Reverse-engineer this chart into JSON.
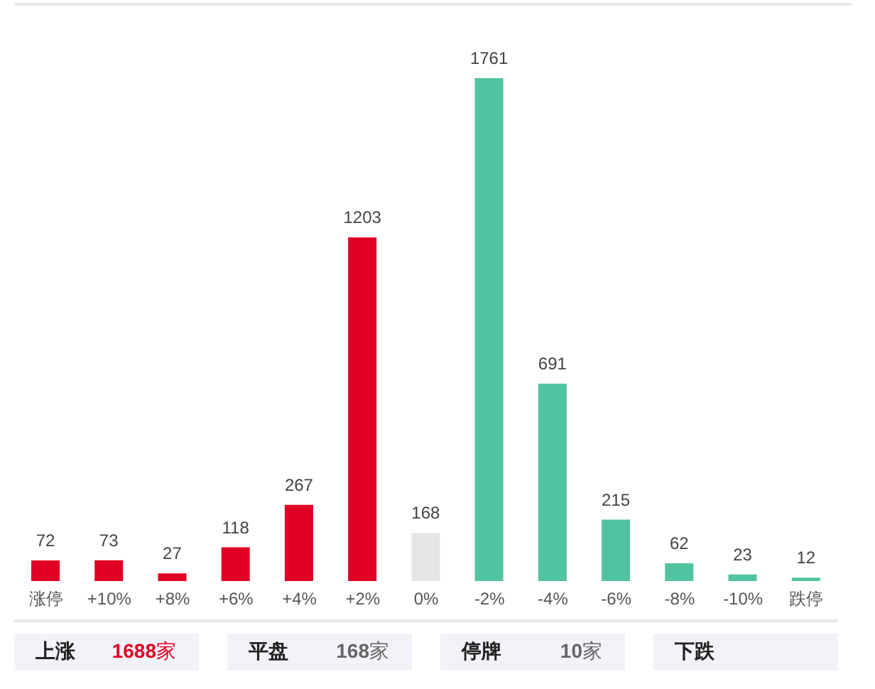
{
  "chart_data": {
    "type": "bar",
    "categories": [
      "涨停",
      "+10%",
      "+8%",
      "+6%",
      "+4%",
      "+2%",
      "0%",
      "-2%",
      "-4%",
      "-6%",
      "-8%",
      "-10%",
      "跌停"
    ],
    "values": [
      72,
      73,
      27,
      118,
      267,
      1203,
      168,
      1761,
      691,
      215,
      62,
      23,
      12
    ],
    "colors": [
      "#e10024",
      "#e10024",
      "#e10024",
      "#e10024",
      "#e10024",
      "#e10024",
      "#e5e5e5",
      "#52c3a1",
      "#52c3a1",
      "#52c3a1",
      "#52c3a1",
      "#52c3a1",
      "#52c3a1"
    ],
    "data_labels": true,
    "tick_labels": "x",
    "annotations": [
      "上涨 1688家",
      "平盘 168家",
      "停牌 10家",
      "下跌"
    ]
  }
}
